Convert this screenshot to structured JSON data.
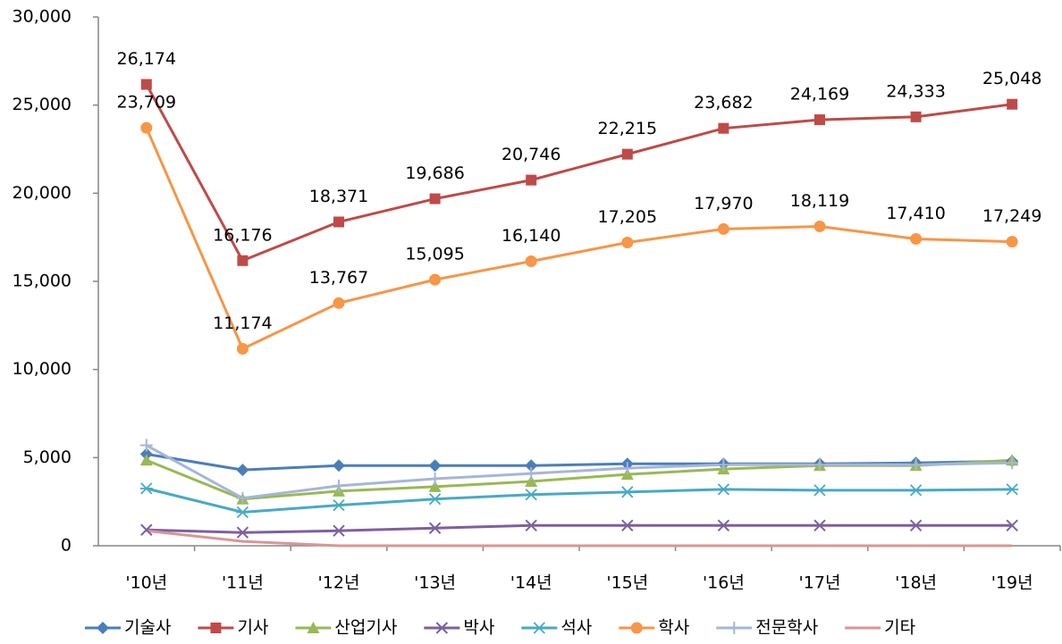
{
  "chart_data": {
    "type": "line",
    "categories": [
      "'10년",
      "'11년",
      "'12년",
      "'13년",
      "'14년",
      "'15년",
      "'16년",
      "'17년",
      "'18년",
      "'19년"
    ],
    "ylim": [
      0,
      30000
    ],
    "yticks": [
      0,
      {
        "value": 5000,
        "label": "5,000"
      },
      {
        "value": 10000,
        "label": "10,000"
      },
      {
        "value": 15000,
        "label": "15,000"
      },
      {
        "value": 20000,
        "label": "20,000"
      },
      {
        "value": 25000,
        "label": "25,000"
      },
      {
        "value": 30000,
        "label": "30,000"
      }
    ],
    "grid": false,
    "legend": "bottom",
    "series": [
      {
        "name": "기술사",
        "color": "#4a7ebb",
        "marker": "diamond",
        "values": [
          5200,
          4300,
          4550,
          4550,
          4550,
          4650,
          4650,
          4650,
          4700,
          4800
        ]
      },
      {
        "name": "기사",
        "color": "#be4b48",
        "marker": "square",
        "values": [
          26174,
          16176,
          18371,
          19686,
          20746,
          22215,
          23682,
          24169,
          24333,
          25048
        ],
        "value_labels": [
          "26,174",
          "16,176",
          "18,371",
          "19,686",
          "20,746",
          "22,215",
          "23,682",
          "24,169",
          "24,333",
          "25,048"
        ]
      },
      {
        "name": "산업기사",
        "color": "#98b954",
        "marker": "triangle",
        "values": [
          4850,
          2650,
          3100,
          3350,
          3650,
          4050,
          4350,
          4550,
          4550,
          4850
        ]
      },
      {
        "name": "박사",
        "color": "#7d60a0",
        "marker": "x",
        "values": [
          900,
          750,
          850,
          1000,
          1150,
          1150,
          1150,
          1150,
          1150,
          1150
        ]
      },
      {
        "name": "석사",
        "color": "#46aac5",
        "marker": "star",
        "values": [
          3250,
          1900,
          2300,
          2650,
          2900,
          3050,
          3200,
          3150,
          3150,
          3200
        ]
      },
      {
        "name": "학사",
        "color": "#f79646",
        "marker": "circle",
        "values": [
          23709,
          11174,
          13767,
          15095,
          16140,
          17205,
          17970,
          18119,
          17410,
          17249
        ],
        "value_labels": [
          "23,709",
          "11,174",
          "13,767",
          "15,095",
          "16,140",
          "17,205",
          "17,970",
          "18,119",
          "17,410",
          "17,249"
        ]
      },
      {
        "name": "전문학사",
        "color": "#a5b6d8",
        "marker": "plus",
        "values": [
          5700,
          2700,
          3400,
          3800,
          4100,
          4400,
          4600,
          4600,
          4600,
          4700
        ]
      },
      {
        "name": "기타",
        "color": "#d99694",
        "marker": "none",
        "values": [
          850,
          250,
          0,
          0,
          0,
          0,
          0,
          0,
          0,
          0
        ]
      }
    ]
  }
}
